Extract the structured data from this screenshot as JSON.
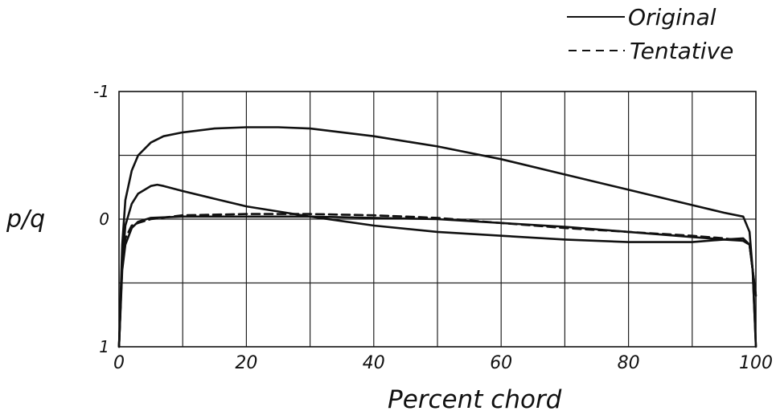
{
  "chart_data": {
    "type": "line",
    "title": "",
    "xlabel": "Percent chord",
    "ylabel": "p/q",
    "xlim": [
      0,
      100
    ],
    "ylim": [
      1,
      -1
    ],
    "y_inverted": true,
    "grid": true,
    "legend_position": "top-right",
    "x_ticks": [
      {
        "value": 0,
        "label": "0"
      },
      {
        "value": 20,
        "label": "20"
      },
      {
        "value": 40,
        "label": "40"
      },
      {
        "value": 60,
        "label": "60"
      },
      {
        "value": 80,
        "label": "80"
      },
      {
        "value": 100,
        "label": "100"
      }
    ],
    "y_ticks": [
      {
        "value": -1,
        "label": "-1"
      },
      {
        "value": 0,
        "label": "0"
      },
      {
        "value": 1,
        "label": "1"
      }
    ],
    "series": [
      {
        "name": "Original",
        "style": "solid",
        "x": [
          0,
          0.5,
          1,
          2,
          3,
          5,
          7,
          10,
          15,
          20,
          25,
          30,
          40,
          50,
          60,
          70,
          80,
          90,
          95,
          98,
          99,
          99.5,
          100
        ],
        "y": [
          1.0,
          0.2,
          -0.15,
          -0.38,
          -0.5,
          -0.6,
          -0.65,
          -0.68,
          -0.71,
          -0.72,
          -0.72,
          -0.71,
          -0.65,
          -0.57,
          -0.47,
          -0.35,
          -0.23,
          -0.11,
          -0.05,
          -0.02,
          0.1,
          0.4,
          1.0
        ]
      },
      {
        "name": "Original",
        "style": "solid",
        "x": [
          0,
          0.5,
          1,
          2,
          3,
          5,
          6,
          7,
          10,
          15,
          20,
          30,
          40,
          50,
          60,
          70,
          80,
          85,
          90,
          95,
          98,
          99,
          99.5,
          100
        ],
        "y": [
          1.0,
          0.35,
          0.05,
          -0.12,
          -0.2,
          -0.26,
          -0.27,
          -0.26,
          -0.22,
          -0.16,
          -0.1,
          -0.02,
          0.05,
          0.1,
          0.13,
          0.16,
          0.18,
          0.18,
          0.18,
          0.16,
          0.15,
          0.2,
          0.4,
          1.0
        ]
      },
      {
        "name": "Tentative",
        "style": "dashed",
        "x": [
          0,
          0.5,
          1,
          2,
          3,
          5,
          10,
          20,
          30,
          40,
          50,
          60,
          70,
          80,
          90,
          95,
          98,
          99,
          100
        ],
        "y": [
          1.0,
          0.35,
          0.15,
          0.05,
          0.03,
          0.0,
          -0.03,
          -0.04,
          -0.04,
          -0.03,
          -0.01,
          0.03,
          0.07,
          0.1,
          0.13,
          0.15,
          0.17,
          0.2,
          0.6
        ]
      },
      {
        "name": "Tentative",
        "style": "solid",
        "x": [
          0,
          0.5,
          1,
          2,
          3,
          5,
          10,
          20,
          30,
          40,
          50,
          60,
          70,
          80,
          90,
          95,
          98,
          99,
          100
        ],
        "y": [
          1.0,
          0.4,
          0.2,
          0.07,
          0.02,
          -0.01,
          -0.02,
          -0.02,
          -0.02,
          -0.01,
          0.0,
          0.03,
          0.06,
          0.1,
          0.14,
          0.16,
          0.17,
          0.2,
          0.6
        ]
      }
    ]
  },
  "legend": [
    {
      "label": "Original",
      "style": "solid"
    },
    {
      "label": "Tentative",
      "style": "dashed"
    }
  ]
}
